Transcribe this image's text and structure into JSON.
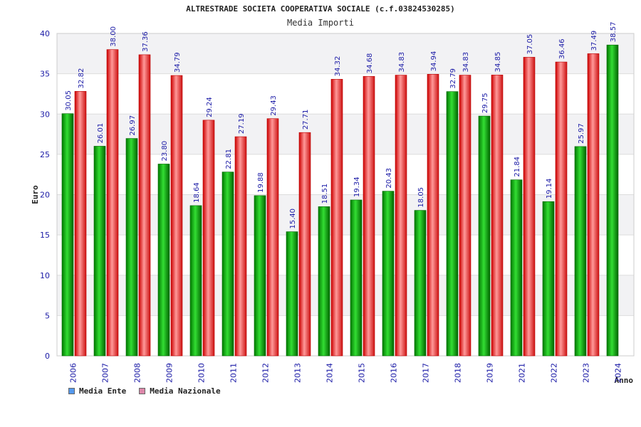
{
  "chart_data": {
    "type": "bar",
    "title": "ALTRESTRADE SOCIETA COOPERATIVA SOCIALE (c.f.03824530285)",
    "subtitle": "Media Importi",
    "ylabel": "Euro",
    "xlabel": "Anno",
    "ylim": [
      0,
      40
    ],
    "yticks": [
      0,
      5,
      10,
      15,
      20,
      25,
      30,
      35,
      40
    ],
    "categories": [
      "2006",
      "2007",
      "2008",
      "2009",
      "2010",
      "2011",
      "2012",
      "2013",
      "2014",
      "2015",
      "2016",
      "2017",
      "2018",
      "2019",
      "2021",
      "2022",
      "2023",
      "2024"
    ],
    "series": [
      {
        "name": "Media Ente",
        "color": "#00aa00",
        "values": [
          30.05,
          26.01,
          26.97,
          23.8,
          18.64,
          22.81,
          19.88,
          15.4,
          18.51,
          19.34,
          20.43,
          18.05,
          32.79,
          29.75,
          21.84,
          19.14,
          25.97,
          38.57
        ],
        "labels": [
          "30.05",
          "26.01",
          "26.97",
          "23.80",
          "18.64",
          "22.81",
          "19.88",
          "15.40",
          "18.51",
          "19.34",
          "20.43",
          "18.05",
          "32.79",
          "29.75",
          "21.84",
          "19.14",
          "25.97",
          "38.57"
        ]
      },
      {
        "name": "Media Nazionale",
        "color": "#ee2222",
        "values": [
          32.82,
          38.0,
          37.36,
          34.79,
          29.24,
          27.19,
          29.43,
          27.71,
          34.32,
          34.68,
          34.83,
          34.94,
          34.83,
          34.85,
          37.05,
          36.46,
          37.49,
          null
        ],
        "labels": [
          "32.82",
          "38.00",
          "37.36",
          "34.79",
          "29.24",
          "27.19",
          "29.43",
          "27.71",
          "34.32",
          "34.68",
          "34.83",
          "34.94",
          "34.83",
          "34.85",
          "37.05",
          "36.46",
          "37.49",
          null
        ]
      }
    ],
    "grid": true,
    "legend": [
      {
        "label": "Media Ente",
        "color": "#5599ee"
      },
      {
        "label": "Media Nazionale",
        "color": "#dd88aa"
      }
    ],
    "legend_position": "bottom-left"
  }
}
